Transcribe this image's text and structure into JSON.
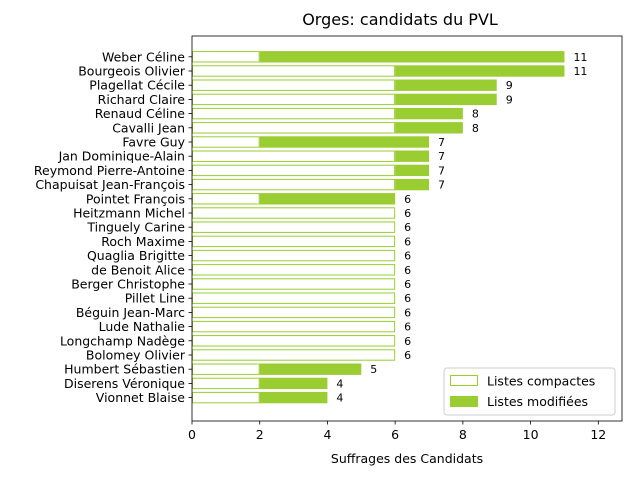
{
  "chart_data": {
    "type": "bar",
    "orientation": "horizontal",
    "stacked": true,
    "title": "Orges: candidats du PVL",
    "xlabel": "Suffrages des Candidats",
    "ylabel": "",
    "xlim": [
      0,
      12.7
    ],
    "xticks": [
      "0",
      "2",
      "4",
      "6",
      "8",
      "10",
      "12"
    ],
    "grid": false,
    "legend_position": "lower-right",
    "categories": [
      "Weber Céline",
      "Bourgeois Olivier",
      "Plagellat Cécile",
      "Richard Claire",
      "Renaud Céline",
      "Cavalli Jean",
      "Favre Guy",
      "Jan Dominique-Alain",
      "Reymond Pierre-Antoine",
      "Chapuisat Jean-François",
      "Pointet François",
      "Heitzmann Michel",
      "Tinguely Carine",
      "Roch Maxime",
      "Quaglia Brigitte",
      "de Benoit Alice",
      "Berger Christophe",
      "Pillet Line",
      "Béguin Jean-Marc",
      "Lude Nathalie",
      "Longchamp Nadège",
      "Bolomey Olivier",
      "Humbert Sébastien",
      "Diserens Véronique",
      "Vionnet Blaise"
    ],
    "series": [
      {
        "name": "Listes compactes",
        "color": "#9acd32",
        "style": "outline",
        "values": [
          2,
          6,
          6,
          6,
          6,
          6,
          2,
          6,
          6,
          6,
          2,
          6,
          6,
          6,
          6,
          6,
          6,
          6,
          6,
          6,
          6,
          6,
          2,
          2,
          2
        ]
      },
      {
        "name": "Listes modifiées",
        "color": "#9acd32",
        "style": "filled",
        "values": [
          9,
          5,
          3,
          3,
          2,
          2,
          5,
          1,
          1,
          1,
          4,
          0,
          0,
          0,
          0,
          0,
          0,
          0,
          0,
          0,
          0,
          0,
          3,
          2,
          2
        ]
      }
    ],
    "totals": [
      "11",
      "11",
      "9",
      "9",
      "8",
      "8",
      "7",
      "7",
      "7",
      "7",
      "6",
      "6",
      "6",
      "6",
      "6",
      "6",
      "6",
      "6",
      "6",
      "6",
      "6",
      "6",
      "5",
      "4",
      "4"
    ]
  }
}
